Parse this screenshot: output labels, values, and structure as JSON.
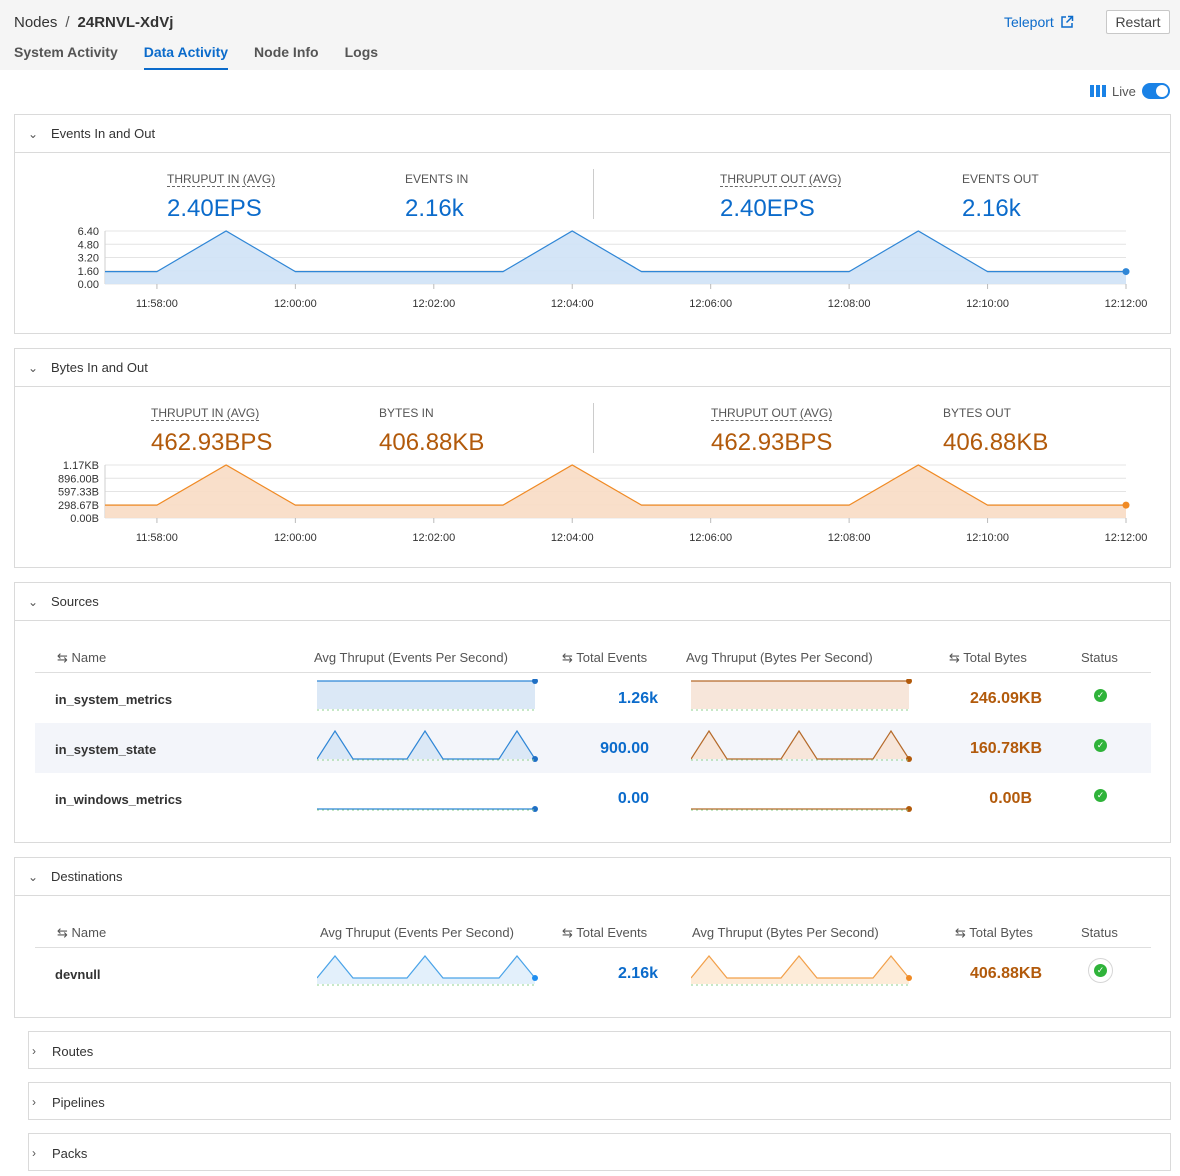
{
  "header": {
    "breadcrumb_root": "Nodes",
    "breadcrumb_sep": "/",
    "node_id": "24RNVL-XdVj",
    "teleport_label": "Teleport",
    "restart_label": "Restart",
    "tabs": [
      {
        "label": "System Activity",
        "active": false
      },
      {
        "label": "Data Activity",
        "active": true
      },
      {
        "label": "Node Info",
        "active": false
      },
      {
        "label": "Logs",
        "active": false
      }
    ],
    "live_label": "Live",
    "live_on": true
  },
  "events_panel": {
    "title": "Events In and Out",
    "thruput_in_label": "THRUPUT IN (AVG)",
    "thruput_in_value": "2.40EPS",
    "events_in_label": "EVENTS IN",
    "events_in_value": "2.16k",
    "thruput_out_label": "THRUPUT OUT (AVG)",
    "thruput_out_value": "2.40EPS",
    "events_out_label": "EVENTS OUT",
    "events_out_value": "2.16k"
  },
  "bytes_panel": {
    "title": "Bytes In and Out",
    "thruput_in_label": "THRUPUT IN (AVG)",
    "thruput_in_value": "462.93BPS",
    "bytes_in_label": "BYTES IN",
    "bytes_in_value": "406.88KB",
    "thruput_out_label": "THRUPUT OUT (AVG)",
    "thruput_out_value": "462.93BPS",
    "bytes_out_label": "BYTES OUT",
    "bytes_out_value": "406.88KB"
  },
  "chart_data": [
    {
      "type": "area",
      "name": "events",
      "color": "#2f86d6",
      "fill": "#cfe2f6",
      "yticks": [
        "6.40",
        "4.80",
        "3.20",
        "1.60",
        "0.00"
      ],
      "ylim": [
        0,
        6.4
      ],
      "xticks": [
        "11:58:00",
        "12:00:00",
        "12:02:00",
        "12:04:00",
        "12:06:00",
        "12:08:00",
        "12:10:00",
        "12:12:00"
      ],
      "x": [
        "11:57:15",
        "11:58:00",
        "11:59:00",
        "12:00:00",
        "12:01:00",
        "12:02:00",
        "12:03:00",
        "12:04:00",
        "12:05:00",
        "12:06:00",
        "12:07:00",
        "12:08:00",
        "12:09:00",
        "12:10:00",
        "12:11:00",
        "12:12:00"
      ],
      "values": [
        1.5,
        1.5,
        6.4,
        1.5,
        1.5,
        1.5,
        1.5,
        6.4,
        1.5,
        1.5,
        1.5,
        1.5,
        6.4,
        1.5,
        1.5,
        1.5
      ]
    },
    {
      "type": "area",
      "name": "bytes",
      "color": "#f08a24",
      "fill": "#f8dcc4",
      "yticks": [
        "1.17KB",
        "896.00B",
        "597.33B",
        "298.67B",
        "0.00B"
      ],
      "ylim": [
        0,
        1194.67
      ],
      "xticks": [
        "11:58:00",
        "12:00:00",
        "12:02:00",
        "12:04:00",
        "12:06:00",
        "12:08:00",
        "12:10:00",
        "12:12:00"
      ],
      "x": [
        "11:57:15",
        "11:58:00",
        "11:59:00",
        "12:00:00",
        "12:01:00",
        "12:02:00",
        "12:03:00",
        "12:04:00",
        "12:05:00",
        "12:06:00",
        "12:07:00",
        "12:08:00",
        "12:09:00",
        "12:10:00",
        "12:11:00",
        "12:12:00"
      ],
      "values": [
        290,
        290,
        1194,
        290,
        290,
        290,
        290,
        1194,
        290,
        290,
        290,
        290,
        1194,
        290,
        290,
        290
      ]
    }
  ],
  "sources": {
    "title": "Sources",
    "headers": {
      "name": "Name",
      "avg_eps": "Avg Thruput (Events Per Second)",
      "total_events": "Total Events",
      "avg_bps": "Avg Thruput (Bytes Per Second)",
      "total_bytes": "Total Bytes",
      "status": "Status"
    },
    "rows": [
      {
        "name": "in_system_metrics",
        "total_events": "1.26k",
        "total_bytes": "246.09KB",
        "spark": "flat-high",
        "status": "healthy"
      },
      {
        "name": "in_system_state",
        "total_events": "900.00",
        "total_bytes": "160.78KB",
        "spark": "peaks",
        "status": "healthy"
      },
      {
        "name": "in_windows_metrics",
        "total_events": "0.00",
        "total_bytes": "0.00B",
        "spark": "zero",
        "status": "healthy"
      }
    ]
  },
  "destinations": {
    "title": "Destinations",
    "headers": {
      "name": "Name",
      "avg_eps": "Avg Thruput (Events Per Second)",
      "total_events": "Total Events",
      "avg_bps": "Avg Thruput (Bytes Per Second)",
      "total_bytes": "Total Bytes",
      "status": "Status"
    },
    "rows": [
      {
        "name": "devnull",
        "total_events": "2.16k",
        "total_bytes": "406.88KB",
        "spark": "peaks-light",
        "status": "healthy"
      }
    ]
  },
  "collapsed_sections": [
    "Routes",
    "Pipelines",
    "Packs"
  ],
  "icons": {
    "sort": "sort-icon",
    "chevron": "chevron-icon",
    "external": "external-link-icon",
    "columns": "columns-icon",
    "check": "check-icon"
  }
}
